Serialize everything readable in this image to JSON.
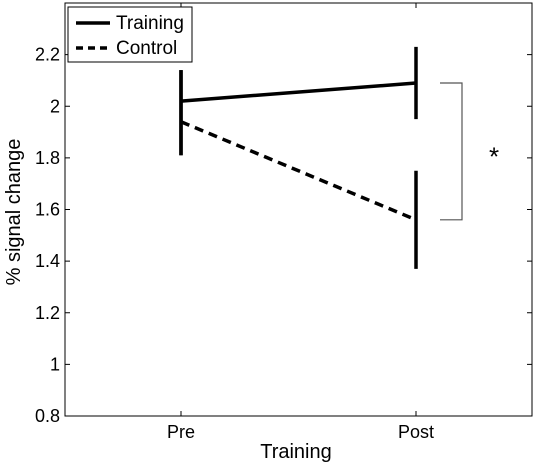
{
  "chart_data": {
    "type": "line",
    "title": "",
    "xlabel": "Training",
    "ylabel": "% signal change",
    "categories": [
      "Pre",
      "Post"
    ],
    "ylim": [
      0.8,
      2.4
    ],
    "yticks": [
      "0.8",
      "1",
      "1.2",
      "1.4",
      "1.6",
      "1.8",
      "2",
      "2.2"
    ],
    "series": [
      {
        "name": "Training",
        "style": "solid",
        "values": [
          2.02,
          2.09
        ],
        "err_low": [
          1.81,
          1.95
        ],
        "err_high": [
          2.14,
          2.23
        ]
      },
      {
        "name": "Control",
        "style": "dashed",
        "values": [
          1.94,
          1.56
        ],
        "err_low": [
          1.81,
          1.37
        ],
        "err_high": [
          2.14,
          1.75
        ]
      }
    ],
    "annotation": {
      "text": "*",
      "between": [
        "Training",
        "Control"
      ],
      "at": "Post"
    },
    "legend": "top-left",
    "grid": false,
    "color": "#000000"
  }
}
